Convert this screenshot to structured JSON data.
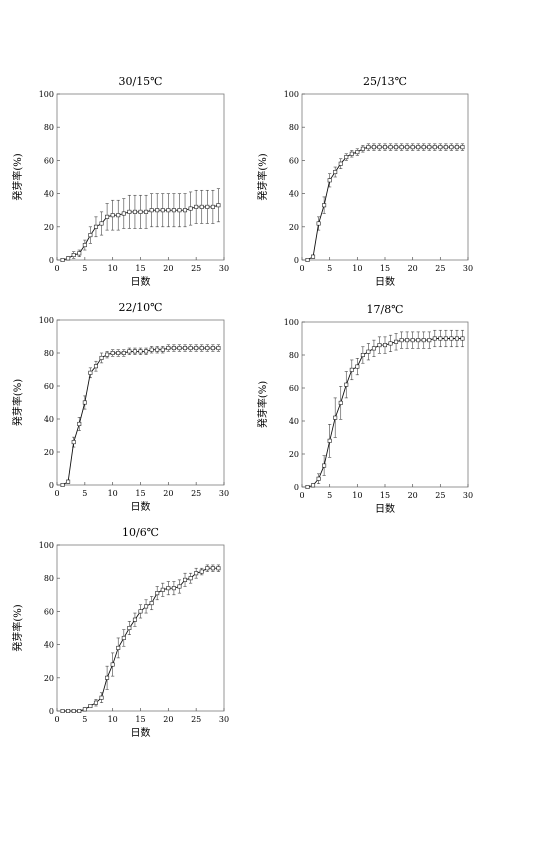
{
  "chart_data": [
    {
      "type": "line",
      "title": "30/15℃",
      "xlabel": "日数",
      "ylabel": "発芽率(%)",
      "xlim": [
        0,
        30
      ],
      "ylim": [
        0,
        100
      ],
      "xticks": [
        0,
        5,
        10,
        15,
        20,
        25,
        30
      ],
      "yticks": [
        0,
        20,
        40,
        60,
        80,
        100
      ],
      "grid": false,
      "marker": "open-square",
      "series": [
        {
          "x": [
            1,
            2,
            3,
            4,
            5,
            6,
            7,
            8,
            9,
            10,
            11,
            12,
            13,
            14,
            15,
            16,
            17,
            18,
            19,
            20,
            21,
            22,
            23,
            24,
            25,
            26,
            27,
            28,
            29
          ],
          "y": [
            0,
            1,
            3,
            4,
            9,
            15,
            20,
            22,
            26,
            27,
            27,
            28,
            29,
            29,
            29,
            29,
            30,
            30,
            30,
            30,
            30,
            30,
            30,
            31,
            32,
            32,
            32,
            32,
            33
          ],
          "err": [
            0,
            1,
            2,
            2,
            3,
            5,
            6,
            7,
            8,
            9,
            9,
            9,
            10,
            10,
            10,
            10,
            10,
            10,
            10,
            10,
            10,
            10,
            10,
            10,
            10,
            10,
            10,
            10,
            10
          ]
        }
      ]
    },
    {
      "type": "line",
      "title": "25/13℃",
      "xlabel": "日数",
      "ylabel": "発芽率(%)",
      "xlim": [
        0,
        30
      ],
      "ylim": [
        0,
        100
      ],
      "xticks": [
        0,
        5,
        10,
        15,
        20,
        25,
        30
      ],
      "yticks": [
        0,
        20,
        40,
        60,
        80,
        100
      ],
      "grid": false,
      "marker": "open-square",
      "series": [
        {
          "x": [
            1,
            2,
            3,
            4,
            5,
            6,
            7,
            8,
            9,
            10,
            11,
            12,
            13,
            14,
            15,
            16,
            17,
            18,
            19,
            20,
            21,
            22,
            23,
            24,
            25,
            26,
            27,
            28,
            29
          ],
          "y": [
            0,
            2,
            22,
            33,
            48,
            53,
            58,
            62,
            64,
            65,
            67,
            68,
            68,
            68,
            68,
            68,
            68,
            68,
            68,
            68,
            68,
            68,
            68,
            68,
            68,
            68,
            68,
            68,
            68
          ],
          "err": [
            0,
            1,
            4,
            5,
            4,
            3,
            3,
            2,
            2,
            2,
            2,
            2,
            2,
            2,
            2,
            2,
            2,
            2,
            2,
            2,
            2,
            2,
            2,
            2,
            2,
            2,
            2,
            2,
            2
          ]
        }
      ]
    },
    {
      "type": "line",
      "title": "22/10℃",
      "xlabel": "日数",
      "ylabel": "発芽率(%)",
      "xlim": [
        0,
        30
      ],
      "ylim": [
        0,
        100
      ],
      "xticks": [
        0,
        5,
        10,
        15,
        20,
        25,
        30
      ],
      "yticks": [
        0,
        20,
        40,
        60,
        80,
        100
      ],
      "grid": false,
      "marker": "open-square",
      "series": [
        {
          "x": [
            1,
            2,
            3,
            4,
            5,
            6,
            7,
            8,
            9,
            10,
            11,
            12,
            13,
            14,
            15,
            16,
            17,
            18,
            19,
            20,
            21,
            22,
            23,
            24,
            25,
            26,
            27,
            28,
            29
          ],
          "y": [
            0,
            2,
            26,
            37,
            50,
            68,
            72,
            77,
            79,
            80,
            80,
            80,
            81,
            81,
            81,
            81,
            82,
            82,
            82,
            83,
            83,
            83,
            83,
            83,
            83,
            83,
            83,
            83,
            83
          ],
          "err": [
            0,
            1,
            3,
            4,
            4,
            3,
            3,
            3,
            2,
            2,
            2,
            2,
            2,
            2,
            2,
            2,
            2,
            2,
            2,
            2,
            2,
            2,
            2,
            2,
            2,
            2,
            2,
            2,
            2
          ]
        }
      ]
    },
    {
      "type": "line",
      "title": "17/8℃",
      "xlabel": "日数",
      "ylabel": "発芽率(%)",
      "xlim": [
        0,
        30
      ],
      "ylim": [
        0,
        100
      ],
      "xticks": [
        0,
        5,
        10,
        15,
        20,
        25,
        30
      ],
      "yticks": [
        0,
        20,
        40,
        60,
        80,
        100
      ],
      "grid": false,
      "marker": "open-square",
      "series": [
        {
          "x": [
            1,
            2,
            3,
            4,
            5,
            6,
            7,
            8,
            9,
            10,
            11,
            12,
            13,
            14,
            15,
            16,
            17,
            18,
            19,
            20,
            21,
            22,
            23,
            24,
            25,
            26,
            27,
            28,
            29
          ],
          "y": [
            0,
            1,
            5,
            13,
            28,
            42,
            51,
            62,
            71,
            73,
            80,
            82,
            84,
            86,
            86,
            87,
            88,
            89,
            89,
            89,
            89,
            89,
            89,
            90,
            90,
            90,
            90,
            90,
            90
          ],
          "err": [
            0,
            1,
            3,
            6,
            10,
            12,
            10,
            8,
            6,
            5,
            5,
            5,
            5,
            5,
            5,
            5,
            5,
            5,
            5,
            5,
            5,
            5,
            5,
            5,
            5,
            5,
            5,
            5,
            5
          ]
        }
      ]
    },
    {
      "type": "line",
      "title": "10/6℃",
      "xlabel": "日数",
      "ylabel": "発芽率(%)",
      "xlim": [
        0,
        30
      ],
      "ylim": [
        0,
        100
      ],
      "xticks": [
        0,
        5,
        10,
        15,
        20,
        25,
        30
      ],
      "yticks": [
        0,
        20,
        40,
        60,
        80,
        100
      ],
      "grid": false,
      "marker": "open-square",
      "series": [
        {
          "x": [
            1,
            2,
            3,
            4,
            5,
            6,
            7,
            8,
            9,
            10,
            11,
            12,
            13,
            14,
            15,
            16,
            17,
            18,
            19,
            20,
            21,
            22,
            23,
            24,
            25,
            26,
            27,
            28,
            29
          ],
          "y": [
            0,
            0,
            0,
            0,
            1,
            3,
            5,
            8,
            20,
            28,
            38,
            44,
            50,
            55,
            60,
            63,
            65,
            71,
            73,
            74,
            74,
            75,
            79,
            80,
            83,
            84,
            86,
            86,
            86
          ],
          "err": [
            0,
            0,
            0,
            0,
            1,
            1,
            2,
            3,
            7,
            7,
            6,
            5,
            4,
            4,
            4,
            4,
            4,
            4,
            4,
            4,
            4,
            4,
            4,
            3,
            3,
            2,
            2,
            2,
            2
          ]
        }
      ]
    }
  ]
}
